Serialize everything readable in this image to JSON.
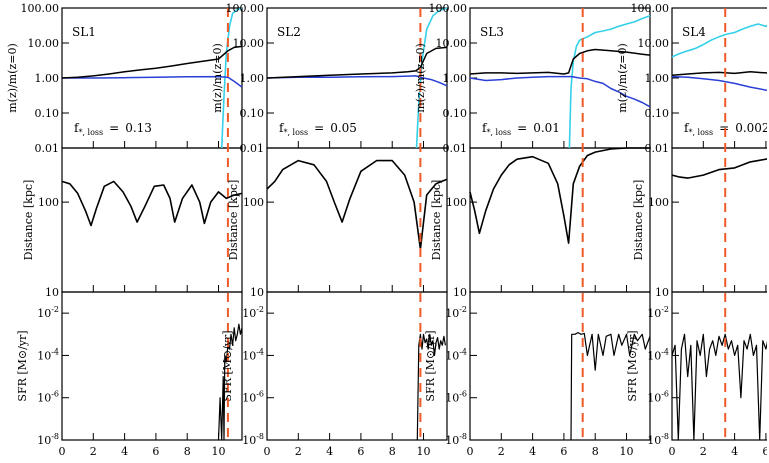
{
  "figure": {
    "colors": {
      "axes": "#000000",
      "tidal_line": "#f05a28",
      "dm": "#000000",
      "stars": "#2a3fd6",
      "gas": "#35d0e8",
      "sfr": "#000000"
    },
    "labels": {
      "mass_ratio": "m(z)/m(z=0)",
      "distance": "Distance [kpc]",
      "sfr": "SFR [M⊙/yr]",
      "floss_prefix": "f",
      "floss_sub": "*, loss",
      "floss_eq": "="
    },
    "ticks": {
      "mass": [
        "100.00",
        "10.00",
        "1.00",
        "0.10",
        "0.01"
      ],
      "distance": [
        "100",
        "10"
      ],
      "sfr_exponents": [
        "-2",
        "-4",
        "-6",
        "-8"
      ],
      "sfr_base": "10",
      "x": [
        "0",
        "2",
        "4",
        "6",
        "8",
        "10"
      ]
    }
  },
  "chart_data": [
    {
      "type": "line",
      "title": "SL1",
      "f_loss": "0.13",
      "tidal_time": 10.6,
      "xlim": [
        0,
        11.5
      ],
      "mass_ratio": {
        "ylim": [
          0.01,
          100
        ],
        "yscale": "log",
        "dm": {
          "x": [
            0,
            1,
            2,
            3,
            4,
            5,
            6,
            7,
            8,
            9,
            10,
            10.6,
            11,
            11.5
          ],
          "y": [
            1.0,
            1.05,
            1.15,
            1.3,
            1.5,
            1.7,
            1.9,
            2.2,
            2.6,
            3.0,
            3.5,
            6.0,
            7.5,
            8.0
          ]
        },
        "stars": {
          "x": [
            0,
            2,
            4,
            6,
            8,
            10,
            10.6,
            11,
            11.5
          ],
          "y": [
            1.0,
            1.0,
            1.02,
            1.05,
            1.08,
            1.1,
            1.05,
            0.8,
            0.55
          ]
        },
        "gas": {
          "x": [
            10.2,
            10.35,
            10.5,
            10.7,
            10.9,
            11.2,
            11.5
          ],
          "y": [
            0.01,
            0.3,
            5,
            30,
            70,
            90,
            100
          ]
        }
      },
      "distance": {
        "ylim": [
          10,
          400
        ],
        "yscale": "log",
        "x": [
          0,
          0.5,
          1,
          1.5,
          1.85,
          2.2,
          2.7,
          3.3,
          3.9,
          4.4,
          4.8,
          5.3,
          5.9,
          6.5,
          6.9,
          7.2,
          7.7,
          8.3,
          8.8,
          9.1,
          9.5,
          10.0,
          10.5,
          11.0,
          11.5
        ],
        "y": [
          170,
          160,
          125,
          80,
          55,
          85,
          150,
          170,
          130,
          90,
          60,
          90,
          150,
          155,
          110,
          60,
          110,
          155,
          100,
          58,
          100,
          130,
          110,
          120,
          125
        ]
      },
      "sfr": {
        "ylim": [
          1e-08,
          0.1
        ],
        "yscale": "log",
        "x": [
          10.0,
          10.1,
          10.2,
          10.3,
          10.35,
          10.4,
          10.5,
          10.6,
          10.7,
          10.8,
          10.9,
          11.0,
          11.1,
          11.2,
          11.3,
          11.4,
          11.5
        ],
        "y": [
          1e-08,
          1e-06,
          1e-08,
          1e-05,
          1e-08,
          0.0001,
          5e-05,
          0.0003,
          0.0002,
          0.001,
          0.0003,
          0.002,
          0.0005,
          0.001,
          0.003,
          0.001,
          0.002
        ]
      }
    },
    {
      "type": "line",
      "title": "SL2",
      "f_loss": "0.05",
      "tidal_time": 9.8,
      "xlim": [
        0,
        11.5
      ],
      "mass_ratio": {
        "ylim": [
          0.01,
          100
        ],
        "yscale": "log",
        "dm": {
          "x": [
            0,
            2,
            4,
            6,
            8,
            9,
            9.5,
            9.8,
            10.2,
            10.8,
            11.5
          ],
          "y": [
            1.0,
            1.1,
            1.2,
            1.3,
            1.4,
            1.5,
            1.6,
            2.0,
            5.0,
            7.0,
            7.5
          ]
        },
        "stars": {
          "x": [
            0,
            2,
            4,
            6,
            8,
            9.5,
            10,
            10.5,
            11,
            11.5
          ],
          "y": [
            1.0,
            1.05,
            1.05,
            1.08,
            1.1,
            1.15,
            1.0,
            0.9,
            0.75,
            0.6
          ]
        },
        "gas": {
          "x": [
            9.55,
            9.7,
            9.9,
            10.2,
            10.6,
            11.0,
            11.5
          ],
          "y": [
            0.01,
            0.2,
            3,
            25,
            60,
            85,
            100
          ]
        }
      },
      "distance": {
        "ylim": [
          10,
          400
        ],
        "yscale": "log",
        "x": [
          0,
          0.5,
          1,
          2,
          3,
          3.8,
          4.3,
          4.8,
          5.3,
          6,
          7,
          8,
          8.8,
          9.4,
          9.8,
          10.2,
          10.8,
          11.5
        ],
        "y": [
          140,
          170,
          230,
          290,
          260,
          170,
          100,
          60,
          110,
          220,
          290,
          290,
          200,
          100,
          30,
          120,
          160,
          180
        ]
      },
      "sfr": {
        "ylim": [
          1e-08,
          0.1
        ],
        "yscale": "log",
        "x": [
          9.6,
          9.7,
          9.8,
          9.9,
          10.0,
          10.1,
          10.2,
          10.3,
          10.4,
          10.5,
          10.6,
          10.7,
          10.8,
          10.9,
          11.0,
          11.1,
          11.2,
          11.3,
          11.4
        ],
        "y": [
          1e-08,
          0.0003,
          0.001,
          0.0002,
          0.001,
          0.0004,
          0.0006,
          0.0002,
          0.001,
          0.0003,
          0.0005,
          0.0001,
          0.0004,
          0.0007,
          0.0002,
          0.0005,
          0.0003,
          0.0008,
          0.0003
        ]
      }
    },
    {
      "type": "line",
      "title": "SL3",
      "f_loss": "0.01",
      "tidal_time": 7.2,
      "xlim": [
        0,
        11.5
      ],
      "mass_ratio": {
        "ylim": [
          0.01,
          100
        ],
        "yscale": "log",
        "dm": {
          "x": [
            0,
            1,
            2,
            3,
            4,
            5,
            6,
            6.3,
            6.6,
            7,
            7.5,
            8,
            9,
            10,
            11,
            11.5
          ],
          "y": [
            1.3,
            1.4,
            1.4,
            1.35,
            1.4,
            1.45,
            1.3,
            1.4,
            3.5,
            5.0,
            6.0,
            6.5,
            6.0,
            5.5,
            4.8,
            4.5
          ]
        },
        "stars": {
          "x": [
            0,
            1,
            2,
            3,
            4,
            5,
            6,
            6.5,
            7,
            7.5,
            8,
            8.5,
            9,
            9.5,
            10,
            10.5,
            11,
            11.5
          ],
          "y": [
            1.0,
            0.85,
            0.9,
            1.0,
            1.05,
            1.1,
            1.1,
            1.1,
            1.0,
            0.95,
            0.8,
            0.7,
            0.5,
            0.4,
            0.3,
            0.25,
            0.2,
            0.15
          ]
        },
        "gas": {
          "x": [
            6.35,
            6.45,
            6.6,
            6.8,
            7.0,
            7.5,
            8,
            8.5,
            9,
            9.5,
            10,
            10.5,
            11,
            11.5
          ],
          "y": [
            0.01,
            0.5,
            3,
            8,
            12,
            15,
            20,
            22,
            25,
            30,
            35,
            40,
            50,
            60
          ]
        }
      },
      "distance": {
        "ylim": [
          10,
          400
        ],
        "yscale": "log",
        "x": [
          0,
          0.3,
          0.6,
          1,
          1.5,
          2,
          2.5,
          3,
          4,
          5,
          5.6,
          6.0,
          6.3,
          6.6,
          7,
          7.5,
          8,
          9,
          10,
          11,
          11.5
        ],
        "y": [
          130,
          80,
          45,
          80,
          140,
          200,
          260,
          300,
          320,
          270,
          160,
          70,
          35,
          160,
          250,
          330,
          360,
          390,
          400,
          410,
          420
        ]
      },
      "sfr": {
        "ylim": [
          1e-08,
          0.1
        ],
        "yscale": "log",
        "x": [
          6.45,
          6.5,
          6.7,
          6.9,
          7.1,
          7.3,
          7.5,
          7.8,
          8.0,
          8.2,
          8.5,
          8.7,
          9.0,
          9.2,
          9.5,
          9.7,
          10.0,
          10.2,
          10.5,
          10.7,
          11.0,
          11.2,
          11.5
        ],
        "y": [
          1e-08,
          0.001,
          0.001,
          0.0012,
          0.001,
          0.0011,
          0.0001,
          0.001,
          2e-05,
          0.001,
          0.0001,
          0.0008,
          0.001,
          0.0001,
          0.001,
          0.0003,
          0.001,
          0.0001,
          0.001,
          0.0005,
          0.001,
          0.0002,
          0.0008
        ]
      }
    },
    {
      "type": "line",
      "title": "SL4",
      "f_loss": "0.002",
      "tidal_time": 3.4,
      "xlim": [
        0,
        11.5
      ],
      "mass_ratio": {
        "ylim": [
          0.01,
          100
        ],
        "yscale": "log",
        "dm": {
          "x": [
            0,
            1,
            2,
            3,
            4,
            5,
            6,
            7,
            8,
            9,
            10,
            11,
            11.5
          ],
          "y": [
            1.2,
            1.3,
            1.4,
            1.45,
            1.35,
            1.5,
            1.4,
            1.45,
            1.35,
            1.5,
            1.4,
            1.5,
            1.5
          ]
        },
        "stars": {
          "x": [
            0,
            1,
            2,
            3,
            4,
            5,
            6,
            7,
            8,
            9,
            10,
            11,
            11.5
          ],
          "y": [
            1.1,
            1.05,
            0.95,
            0.85,
            0.7,
            0.55,
            0.45,
            0.38,
            0.3,
            0.25,
            0.2,
            0.15,
            0.12
          ]
        },
        "gas": {
          "x": [
            0,
            0.5,
            1,
            1.5,
            2,
            2.5,
            3,
            3.5,
            4,
            4.5,
            5,
            5.5,
            6,
            6.5,
            7,
            7.5,
            8,
            8.5,
            9,
            9.5,
            10,
            10.5,
            11,
            11.5
          ],
          "y": [
            4,
            5,
            6,
            7,
            9,
            12,
            15,
            18,
            20,
            25,
            30,
            35,
            30,
            40,
            38,
            45,
            50,
            45,
            55,
            60,
            55,
            70,
            65,
            80
          ]
        }
      },
      "distance": {
        "ylim": [
          10,
          400
        ],
        "yscale": "log",
        "x": [
          0,
          0.5,
          1,
          2,
          3,
          4,
          5,
          6,
          7,
          8,
          9,
          10,
          11,
          11.5
        ],
        "y": [
          200,
          190,
          185,
          200,
          230,
          240,
          280,
          300,
          330,
          360,
          380,
          390,
          400,
          405
        ]
      },
      "sfr": {
        "ylim": [
          1e-08,
          0.1
        ],
        "yscale": "log",
        "x": [
          0,
          0.2,
          0.4,
          0.6,
          0.8,
          1.0,
          1.2,
          1.4,
          1.6,
          1.8,
          2.0,
          2.2,
          2.4,
          2.6,
          2.8,
          3.0,
          3.2,
          3.4,
          3.6,
          3.8,
          4.0,
          4.2,
          4.4,
          4.6,
          4.8,
          5.0,
          5.2,
          5.4,
          5.6,
          5.8,
          6.0,
          6.2,
          6.4,
          6.6,
          6.8,
          7.0,
          7.2,
          7.4,
          7.6,
          7.8,
          8.0,
          8.2,
          8.4,
          8.6,
          8.8,
          9.0,
          9.2,
          9.4,
          9.6,
          9.8,
          10.0,
          10.2,
          10.4,
          10.6,
          10.8,
          11.0,
          11.2,
          11.4
        ],
        "y": [
          0.0001,
          0.0003,
          1e-08,
          0.0002,
          0.001,
          1e-05,
          0.0003,
          1e-08,
          0.0005,
          0.0001,
          0.001,
          1e-05,
          0.0002,
          0.0005,
          0.0001,
          0.0008,
          0.0003,
          0.001,
          0.0002,
          0.0005,
          0.0001,
          0.0003,
          1e-06,
          0.0005,
          0.0002,
          0.001,
          0.0001,
          0.0003,
          1e-08,
          0.0005,
          0.0002,
          0.001,
          1e-05,
          0.0003,
          0.0001,
          0.0006,
          1e-08,
          0.0004,
          0.0002,
          0.001,
          1e-05,
          0.0003,
          0.0001,
          0.0005,
          1e-08,
          0.0004,
          0.0001,
          0.001,
          1e-06,
          0.0003,
          0.0001,
          0.0005,
          1e-08,
          0.0003,
          0.0001,
          0.0006,
          1e-05,
          0.0003
        ]
      }
    }
  ]
}
